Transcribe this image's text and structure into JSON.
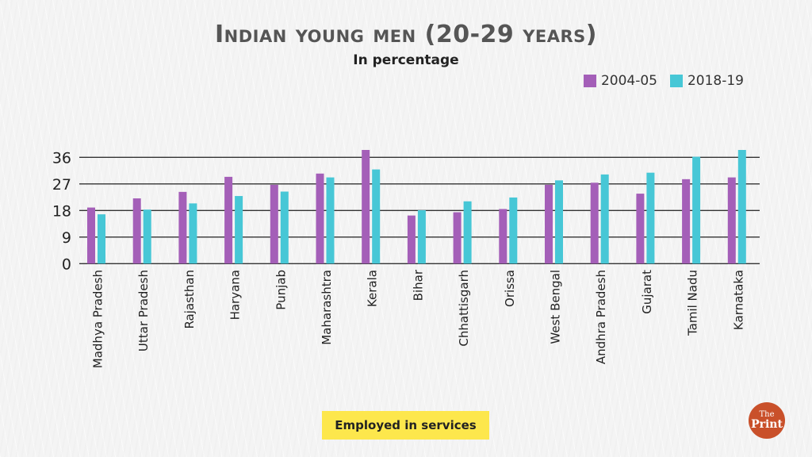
{
  "colors": {
    "series_2004": "#a45fb8",
    "series_2018": "#47c7d6",
    "grid": "#333333",
    "badge": "#fde74c",
    "logo": "#c9502a"
  },
  "chart_data": {
    "type": "bar",
    "title": "Indian young men (20-29 years)",
    "subtitle": "In percentage",
    "xlabel": "",
    "ylabel": "",
    "ylim": [
      0,
      36
    ],
    "yticks": [
      0,
      9,
      18,
      27,
      36
    ],
    "grid": true,
    "legend_position": "top-right",
    "categories": [
      "Madhya Pradesh",
      "Uttar Pradesh",
      "Rajasthan",
      "Haryana",
      "Punjab",
      "Maharashtra",
      "Kerala",
      "Bihar",
      "Chhattisgarh",
      "Orissa",
      "West Bengal",
      "Andhra Pradesh",
      "Gujarat",
      "Tamil Nadu",
      "Karnataka"
    ],
    "series": [
      {
        "name": "2004-05",
        "values": [
          19.0,
          22.1,
          24.3,
          29.4,
          26.7,
          30.5,
          38.5,
          16.3,
          17.4,
          18.5,
          26.7,
          27.4,
          23.7,
          28.6,
          29.2
        ]
      },
      {
        "name": "2018-19",
        "values": [
          16.7,
          18.3,
          20.4,
          22.9,
          24.4,
          29.2,
          31.9,
          18.1,
          21.1,
          22.4,
          28.2,
          30.2,
          30.8,
          36.2,
          38.5
        ]
      }
    ]
  },
  "badge": {
    "label": "Employed in services"
  },
  "logo": {
    "line1": "The",
    "line2": "Print"
  }
}
